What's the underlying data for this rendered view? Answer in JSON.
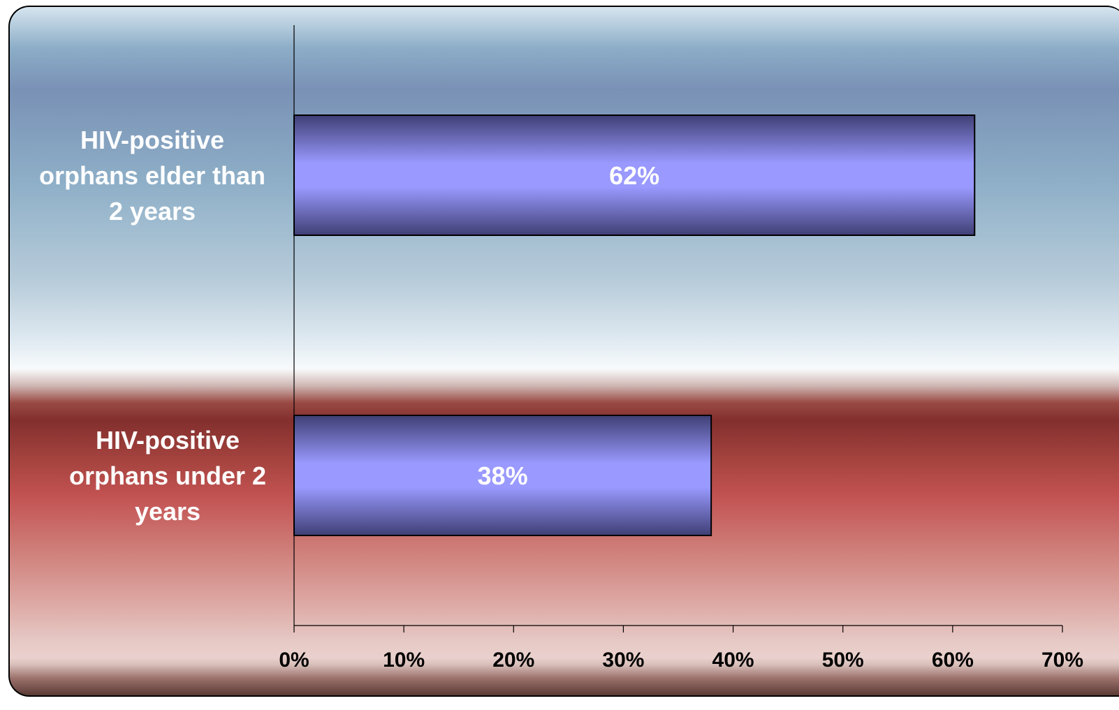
{
  "chart_data": {
    "type": "bar",
    "orientation": "horizontal",
    "categories": [
      "HIV-positive orphans elder than 2 years",
      "HIV-positive orphans under 2 years"
    ],
    "category_label_lines": [
      [
        "HIV-positive",
        "orphans elder than",
        "2 years"
      ],
      [
        "HIV-positive",
        "orphans under 2",
        "years"
      ]
    ],
    "values": [
      62,
      38
    ],
    "data_labels": [
      "62%",
      "38%"
    ],
    "xlim": [
      0,
      70
    ],
    "x_ticks": [
      0,
      10,
      20,
      30,
      40,
      50,
      60,
      70
    ],
    "x_tick_labels": [
      "0%",
      "10%",
      "20%",
      "30%",
      "40%",
      "50%",
      "60%",
      "70%"
    ],
    "title": "",
    "xlabel": "",
    "ylabel": "",
    "grid": false,
    "legend": "none",
    "colors": {
      "bar_center": "#9999ff",
      "bar_edge": "#3f3f75",
      "bar_outline": "#000000",
      "data_label": "#ffffff",
      "category_label": "#ffffff",
      "tick_label": "#000000"
    }
  }
}
